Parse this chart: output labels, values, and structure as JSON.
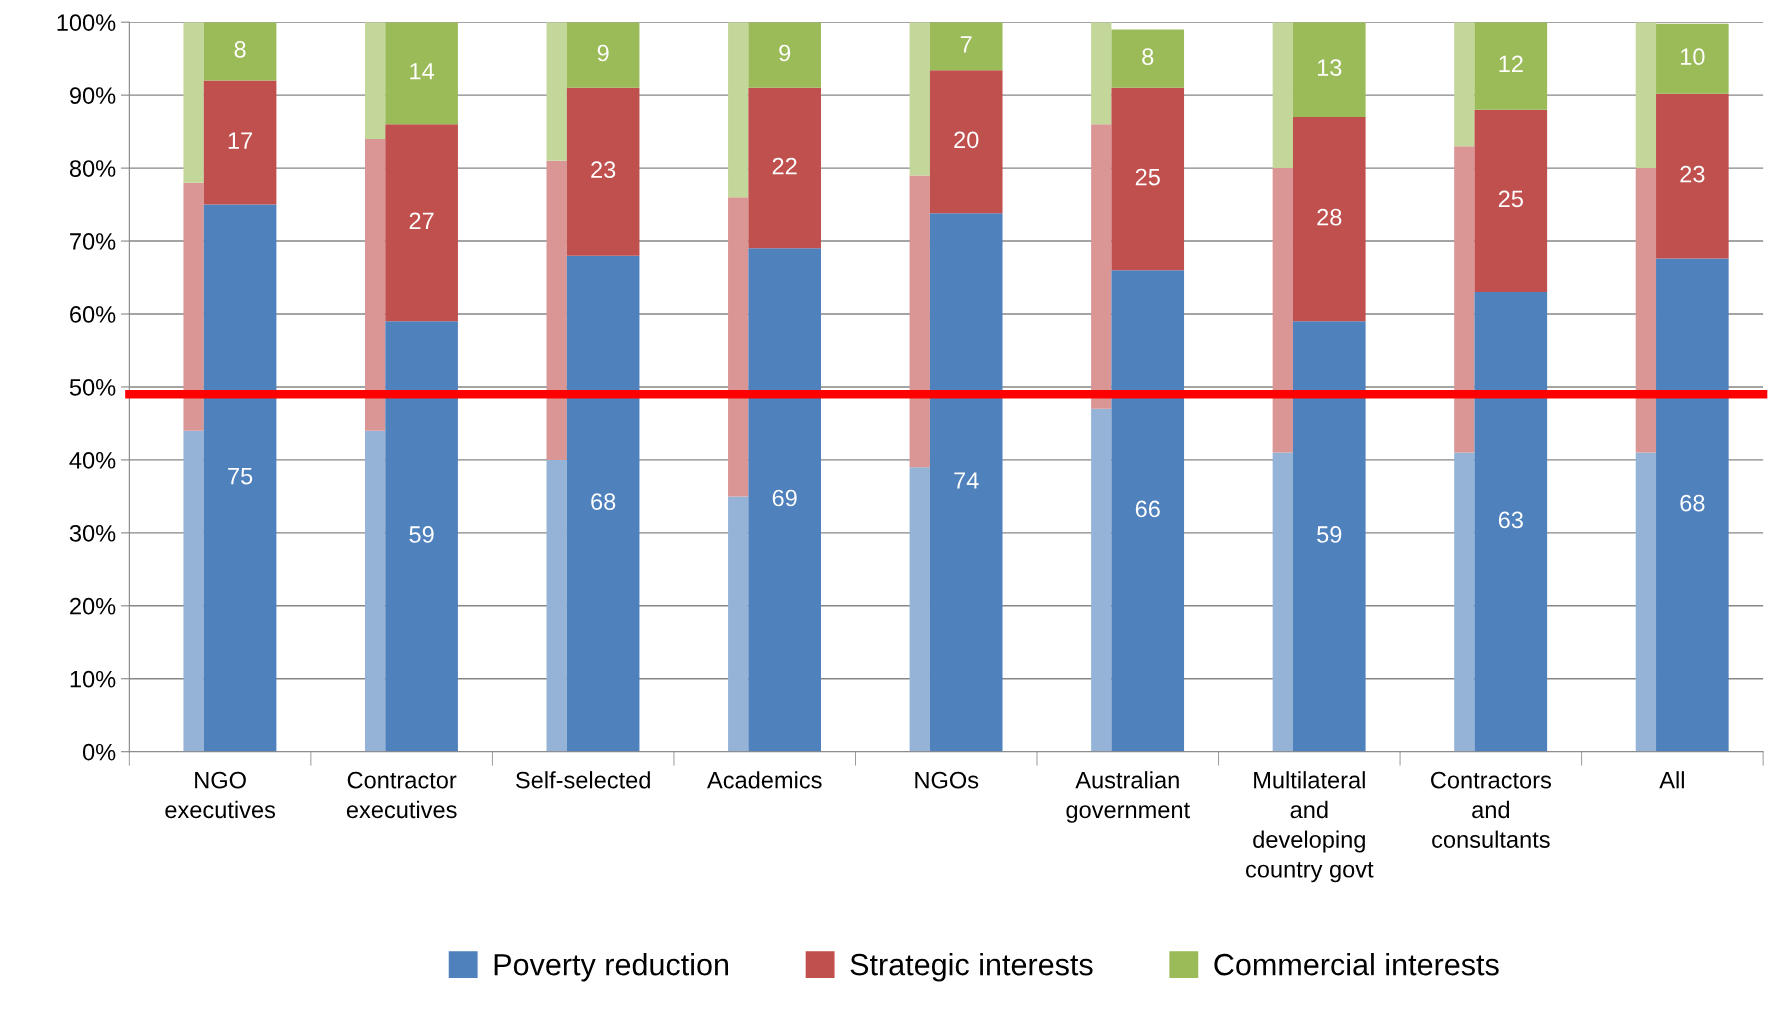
{
  "chart_data": [
    {
      "type": "bar",
      "stacked": true,
      "tick_labels": false,
      "grid": "y",
      "categories": [
        null,
        null,
        null,
        null,
        null,
        null,
        null,
        null,
        null
      ],
      "series": [
        {
          "color": "#95b3d7",
          "values": [
            44,
            44,
            40,
            35,
            39,
            47,
            41,
            41,
            41
          ]
        },
        {
          "color": "#da9694",
          "values": [
            34,
            40,
            41,
            41,
            40,
            39,
            39,
            42,
            39
          ]
        },
        {
          "color": "#c4d79b",
          "values": [
            22,
            16,
            19,
            24,
            21,
            14,
            20,
            17,
            20
          ]
        }
      ],
      "ylim": [
        0,
        100
      ],
      "yticks": [
        {
          "value": 0,
          "label": null
        },
        {
          "value": 10,
          "label": null
        },
        {
          "value": 20,
          "label": null
        },
        {
          "value": 30,
          "label": null
        },
        {
          "value": 40,
          "label": null
        },
        {
          "value": 50,
          "label": null
        },
        {
          "value": 60,
          "label": null
        },
        {
          "value": 70,
          "label": null
        },
        {
          "value": 80,
          "label": null
        },
        {
          "value": 90,
          "label": null
        },
        {
          "value": 100,
          "label": null
        }
      ]
    },
    {
      "type": "bar",
      "stacked": true,
      "categories": [
        "NGO\nexecutives",
        "Contractor\nexecutives",
        "Self-selected",
        "Academics",
        "NGOs",
        "Australian\ngovernment",
        "Multilateral\nand\ndeveloping\ncountry govt",
        "Contractors\nand\nconsultants",
        "All"
      ],
      "series": [
        {
          "name": "Poverty reduction",
          "color": "#4f81bd",
          "values": [
            75,
            59,
            68,
            69,
            73.8,
            66,
            59,
            63,
            67.6
          ],
          "value_labels": [
            "75",
            "59",
            "68",
            "69",
            "74",
            "66",
            "59",
            "63",
            "68"
          ]
        },
        {
          "name": "Strategic interests",
          "color": "#c0504d",
          "values": [
            17,
            27,
            23,
            22,
            19.6,
            25,
            28,
            25,
            22.6
          ],
          "value_labels": [
            "17",
            "27",
            "23",
            "22",
            "20",
            "25",
            "28",
            "25",
            "23"
          ]
        },
        {
          "name": "Commercial interests",
          "color": "#9bbb59",
          "values": [
            8,
            14,
            9,
            9,
            6.6,
            8,
            13,
            12,
            9.6
          ],
          "value_labels": [
            "8",
            "14",
            "9",
            "9",
            "7",
            "8",
            "13",
            "12",
            "10"
          ]
        }
      ],
      "ylim": [
        0,
        100
      ],
      "yticks": [
        {
          "value": 0,
          "label": "0%"
        },
        {
          "value": 10,
          "label": "10%"
        },
        {
          "value": 20,
          "label": "20%"
        },
        {
          "value": 30,
          "label": "30%"
        },
        {
          "value": 40,
          "label": "40%"
        },
        {
          "value": 50,
          "label": "50%"
        },
        {
          "value": 60,
          "label": "60%"
        },
        {
          "value": 70,
          "label": "70%"
        },
        {
          "value": 80,
          "label": "80%"
        },
        {
          "value": 90,
          "label": "90%"
        },
        {
          "value": 100,
          "label": "100%"
        }
      ],
      "ref_lines": [
        {
          "axis": "y",
          "value": 49,
          "color": "#ff0000"
        }
      ],
      "legend": "bottom"
    }
  ]
}
